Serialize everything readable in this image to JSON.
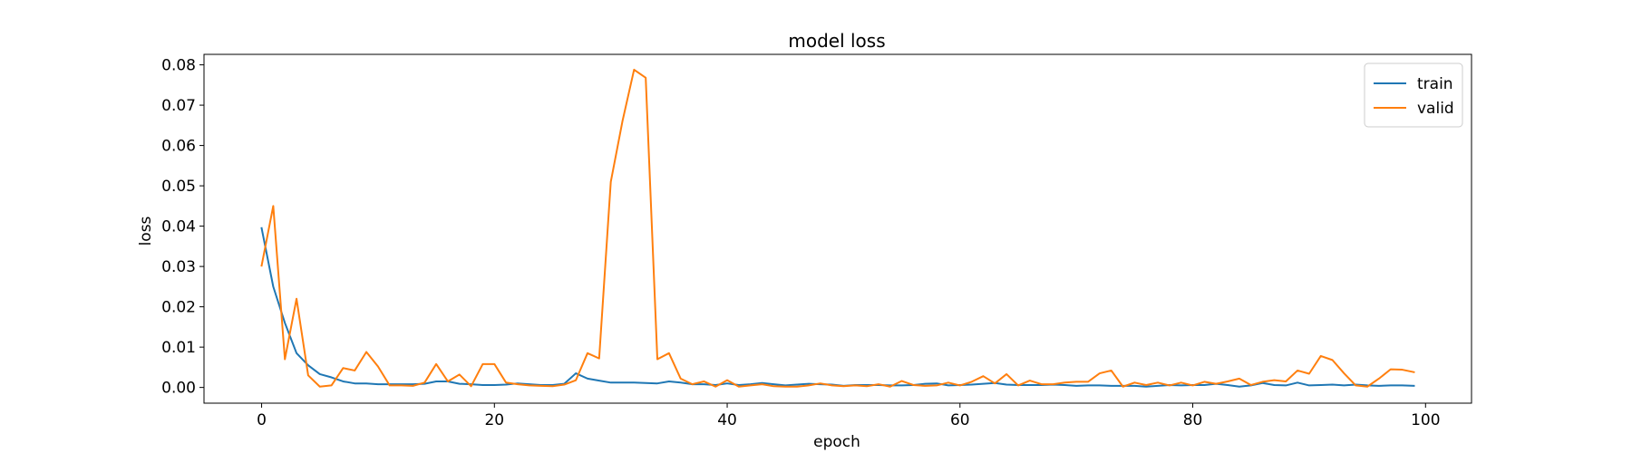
{
  "chart_data": {
    "type": "line",
    "title": "model loss",
    "xlabel": "epoch",
    "ylabel": "loss",
    "xlim": [
      -4.95,
      103.95
    ],
    "ylim": [
      -0.0039,
      0.0826
    ],
    "xticks": [
      0,
      20,
      40,
      60,
      80,
      100
    ],
    "xtick_labels": [
      "0",
      "20",
      "40",
      "60",
      "80",
      "100"
    ],
    "yticks": [
      0.0,
      0.01,
      0.02,
      0.03,
      0.04,
      0.05,
      0.06,
      0.07,
      0.08
    ],
    "ytick_labels": [
      "0.00",
      "0.01",
      "0.02",
      "0.03",
      "0.04",
      "0.05",
      "0.06",
      "0.07",
      "0.08"
    ],
    "grid": false,
    "legend_position": "top-right",
    "series": [
      {
        "name": "train",
        "color": "#1f77b4",
        "values": [
          0.0395,
          0.025,
          0.016,
          0.0085,
          0.0055,
          0.0033,
          0.0025,
          0.0015,
          0.001,
          0.001,
          0.0008,
          0.0008,
          0.0008,
          0.0008,
          0.0009,
          0.0015,
          0.0015,
          0.0009,
          0.0008,
          0.0006,
          0.0006,
          0.0007,
          0.001,
          0.0008,
          0.0006,
          0.0006,
          0.0009,
          0.0035,
          0.0022,
          0.0017,
          0.0012,
          0.0012,
          0.0012,
          0.0011,
          0.001,
          0.0015,
          0.0012,
          0.0008,
          0.0008,
          0.0006,
          0.001,
          0.0006,
          0.0008,
          0.0011,
          0.0008,
          0.0005,
          0.0007,
          0.0009,
          0.0008,
          0.0007,
          0.0004,
          0.0006,
          0.0006,
          0.0006,
          0.0005,
          0.0005,
          0.0006,
          0.0009,
          0.001,
          0.0005,
          0.0006,
          0.0007,
          0.0009,
          0.0011,
          0.0007,
          0.0006,
          0.0006,
          0.0006,
          0.0007,
          0.0006,
          0.0004,
          0.0005,
          0.0005,
          0.0004,
          0.0004,
          0.0004,
          0.0002,
          0.0004,
          0.0006,
          0.0005,
          0.0006,
          0.0006,
          0.0009,
          0.0006,
          0.0002,
          0.0005,
          0.0011,
          0.0006,
          0.0005,
          0.0012,
          0.0005,
          0.0006,
          0.0007,
          0.0005,
          0.0007,
          0.0005,
          0.0004,
          0.0005,
          0.0005,
          0.0004
        ]
      },
      {
        "name": "valid",
        "color": "#ff7f0e",
        "values": [
          0.0302,
          0.045,
          0.007,
          0.022,
          0.003,
          0.0002,
          0.0005,
          0.0048,
          0.0042,
          0.0088,
          0.0052,
          0.0005,
          0.0005,
          0.0004,
          0.0012,
          0.0058,
          0.0015,
          0.0032,
          0.0003,
          0.0058,
          0.0058,
          0.0012,
          0.0008,
          0.0005,
          0.0004,
          0.0003,
          0.0007,
          0.0018,
          0.0085,
          0.0072,
          0.051,
          0.066,
          0.0788,
          0.0768,
          0.007,
          0.0085,
          0.0022,
          0.0008,
          0.0015,
          0.0002,
          0.0018,
          0.0002,
          0.0005,
          0.0008,
          0.0003,
          0.0002,
          0.0002,
          0.0005,
          0.001,
          0.0005,
          0.0003,
          0.0005,
          0.0003,
          0.0008,
          0.0002,
          0.0016,
          0.0006,
          0.0004,
          0.0005,
          0.0012,
          0.0005,
          0.0014,
          0.0028,
          0.001,
          0.0033,
          0.0005,
          0.0017,
          0.0008,
          0.0008,
          0.0012,
          0.0014,
          0.0014,
          0.0035,
          0.0042,
          0.0002,
          0.0012,
          0.0006,
          0.0012,
          0.0005,
          0.0012,
          0.0005,
          0.0014,
          0.0009,
          0.0015,
          0.0022,
          0.0006,
          0.0014,
          0.0018,
          0.0015,
          0.0042,
          0.0034,
          0.0078,
          0.0068,
          0.0035,
          0.0005,
          0.0002,
          0.0022,
          0.0045,
          0.0044,
          0.0038
        ]
      }
    ]
  }
}
